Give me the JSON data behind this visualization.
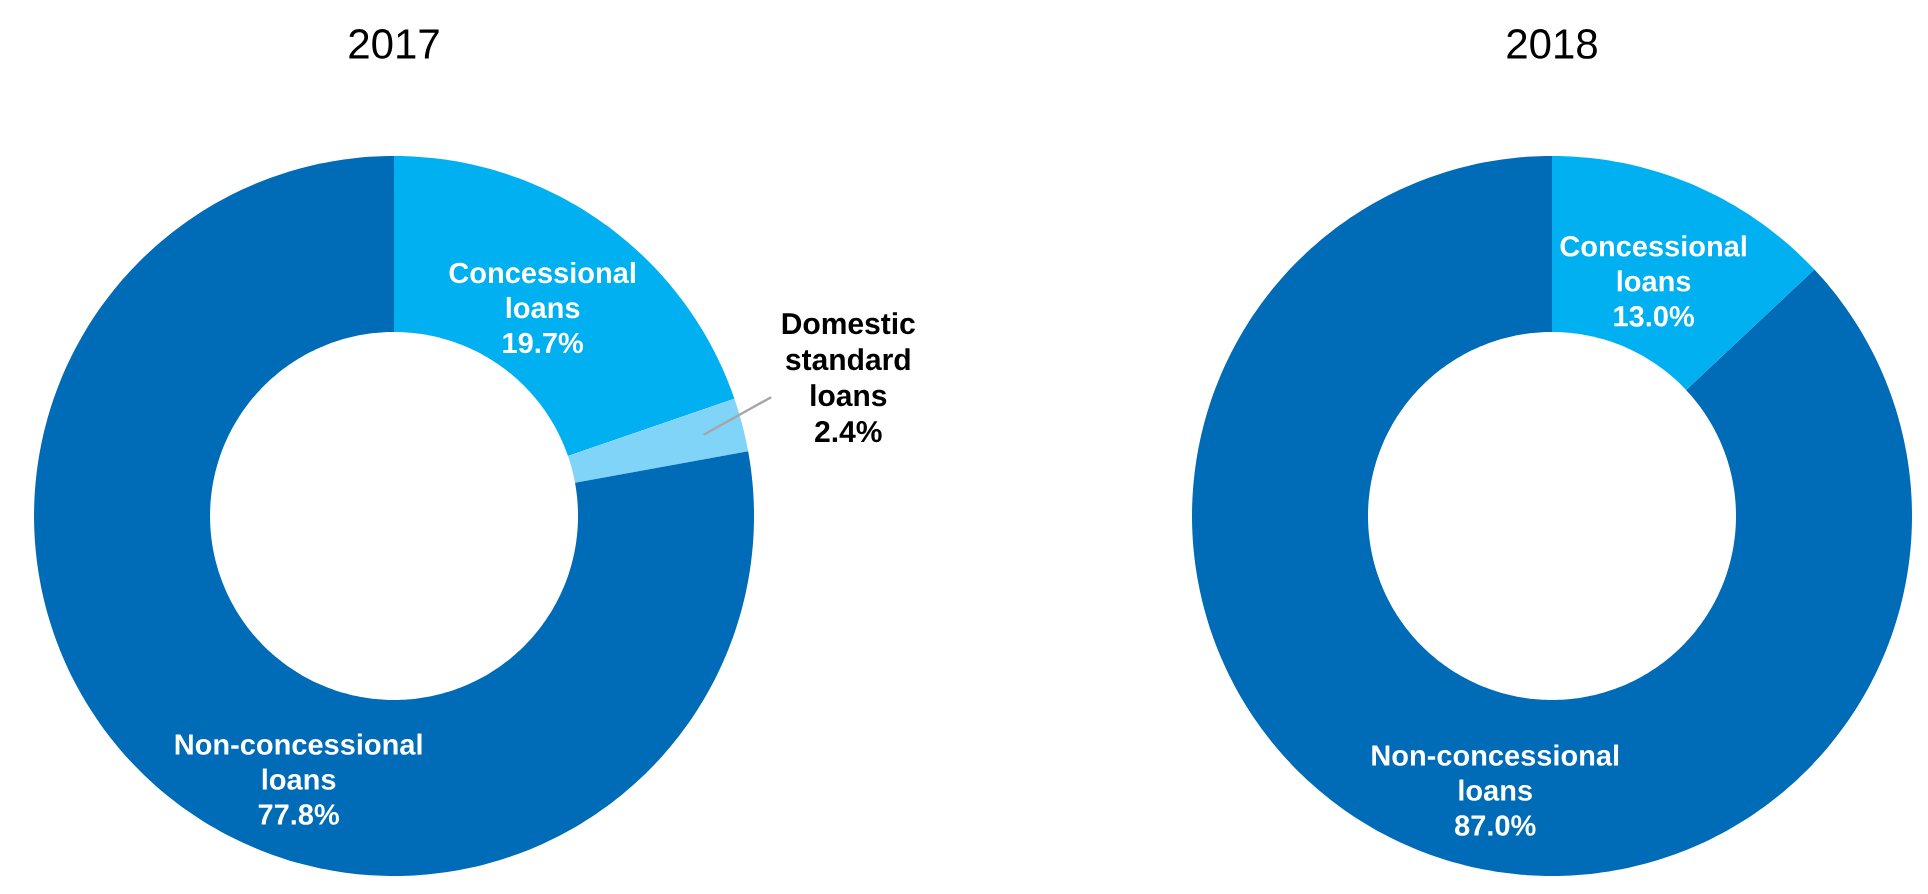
{
  "chart_data": [
    {
      "type": "donut",
      "title": "2017",
      "categories": [
        "Concessional loans",
        "Domestic standard loans",
        "Non-concessional loans"
      ],
      "values": [
        19.7,
        2.4,
        77.8
      ],
      "value_labels": [
        "19.7%",
        "2.4%",
        "77.8%"
      ],
      "colors": [
        "#00b0f0",
        "#80d4f8",
        "#006cb7"
      ]
    },
    {
      "type": "donut",
      "title": "2018",
      "categories": [
        "Concessional loans",
        "Non-concessional loans"
      ],
      "values": [
        13.0,
        87.0
      ],
      "value_labels": [
        "13.0%",
        "87.0%"
      ],
      "colors": [
        "#00b0f0",
        "#006cb7"
      ]
    }
  ]
}
